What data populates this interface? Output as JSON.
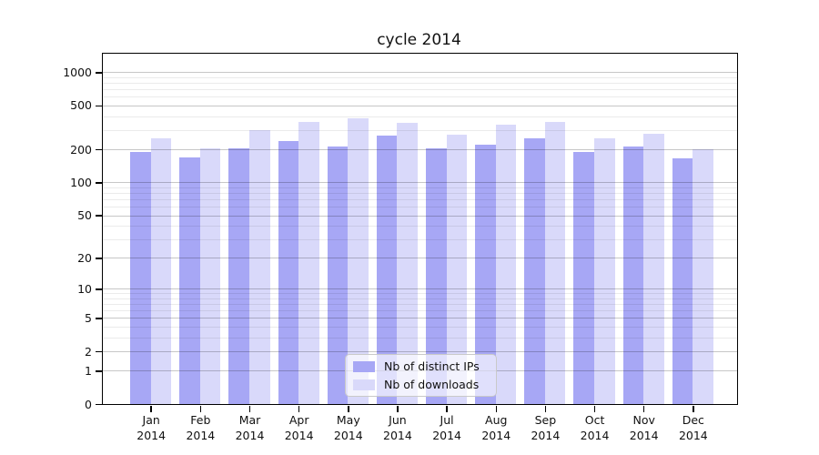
{
  "chart_data": {
    "type": "bar",
    "title": "cycle 2014",
    "categories": [
      "Jan 2014",
      "Feb 2014",
      "Mar 2014",
      "Apr 2014",
      "May 2014",
      "Jun 2014",
      "Jul 2014",
      "Aug 2014",
      "Sep 2014",
      "Oct 2014",
      "Nov 2014",
      "Dec 2014"
    ],
    "series": [
      {
        "name": "Nb of distinct IPs",
        "color": "#a7a7f5",
        "values": [
          190,
          170,
          205,
          236,
          212,
          268,
          205,
          222,
          252,
          190,
          212,
          167
        ]
      },
      {
        "name": "Nb of downloads",
        "color": "#d9d9fa",
        "values": [
          253,
          205,
          300,
          352,
          382,
          348,
          273,
          335,
          352,
          253,
          278,
          202
        ]
      }
    ],
    "xlabel": "",
    "ylabel": "",
    "yscale": "log(1+x)",
    "yticks": [
      0,
      1,
      2,
      5,
      10,
      20,
      50,
      100,
      200,
      500,
      1000
    ],
    "ylim": [
      0,
      1473
    ],
    "grid": "major and minor horizontal gridlines",
    "legend_position": "lower center",
    "colors": {
      "spine": "#000000",
      "text": "#111111",
      "major_grid": "rgba(0,0,0,0.22)",
      "minor_grid": "rgba(0,0,0,0.08)",
      "legend_bg": "rgba(255,255,255,0.65)",
      "legend_border": "#c9c9c9"
    }
  }
}
